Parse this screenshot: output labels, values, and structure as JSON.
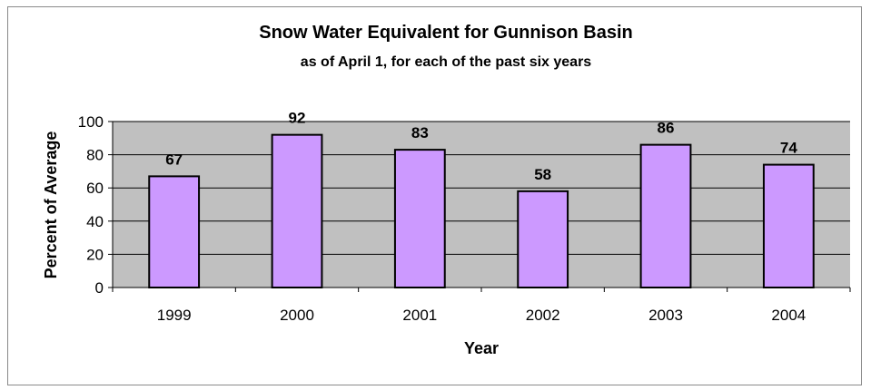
{
  "chart_data": {
    "type": "bar",
    "title": "Snow Water Equivalent for Gunnison Basin",
    "subtitle": "as of April 1, for each of the past six years",
    "xlabel": "Year",
    "ylabel": "Percent of Average",
    "categories": [
      "1999",
      "2000",
      "2001",
      "2002",
      "2003",
      "2004"
    ],
    "values": [
      67,
      92,
      83,
      58,
      86,
      74
    ],
    "data_labels": [
      "67",
      "92",
      "83",
      "58",
      "86",
      "74"
    ],
    "y_ticks": [
      0,
      20,
      40,
      60,
      80,
      100
    ],
    "y_tick_labels": [
      "0",
      "20",
      "40",
      "60",
      "80",
      "100"
    ],
    "ylim": [
      0,
      100
    ],
    "grid": true,
    "legend": "none",
    "colors": {
      "bar_fill": "#cc99ff",
      "bar_stroke": "#000000",
      "plot_background": "#c0c0c0",
      "gridline": "#000000"
    }
  }
}
